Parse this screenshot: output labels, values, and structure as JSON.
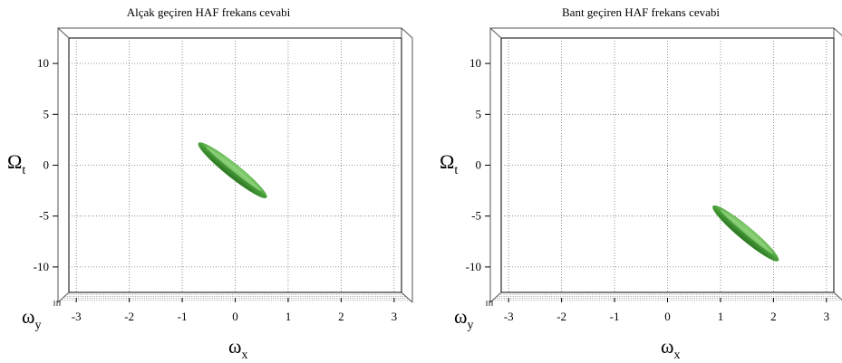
{
  "chart_data": [
    {
      "type": "scatter",
      "title": "Alçak geçiren HAF frekans cevabi",
      "xlabel": {
        "symbol": "ω",
        "sub": "x"
      },
      "ylabel": {
        "symbol": "Ω",
        "sub": "t"
      },
      "zlabel": {
        "symbol": "ω",
        "sub": "y"
      },
      "xlim": [
        -3.14,
        3.14
      ],
      "ylim": [
        -12.5,
        12.5
      ],
      "xticks": [
        "-3",
        "-2",
        "-1",
        "0",
        "1",
        "2",
        "3"
      ],
      "yticks": [
        "10",
        "5",
        "0",
        "-5",
        "-10"
      ],
      "grid": true,
      "surface": {
        "shape": "ellipsoid",
        "start": [
          -0.65,
          2.0
        ],
        "end": [
          0.55,
          -3.0
        ],
        "color": "#4aa23a"
      }
    },
    {
      "type": "scatter",
      "title": "Bant geçiren HAF frekans cevabi",
      "xlabel": {
        "symbol": "ω",
        "sub": "x"
      },
      "ylabel": {
        "symbol": "Ω",
        "sub": "t"
      },
      "zlabel": {
        "symbol": "ω",
        "sub": "y"
      },
      "xlim": [
        -3.14,
        3.14
      ],
      "ylim": [
        -12.5,
        12.5
      ],
      "xticks": [
        "-3",
        "-2",
        "-1",
        "0",
        "1",
        "2",
        "3"
      ],
      "yticks": [
        "10",
        "5",
        "0",
        "-5",
        "-10"
      ],
      "grid": true,
      "surface": {
        "shape": "ellipsoid",
        "start": [
          0.9,
          -4.2
        ],
        "end": [
          2.05,
          -9.2
        ],
        "color": "#4aa23a"
      }
    }
  ]
}
